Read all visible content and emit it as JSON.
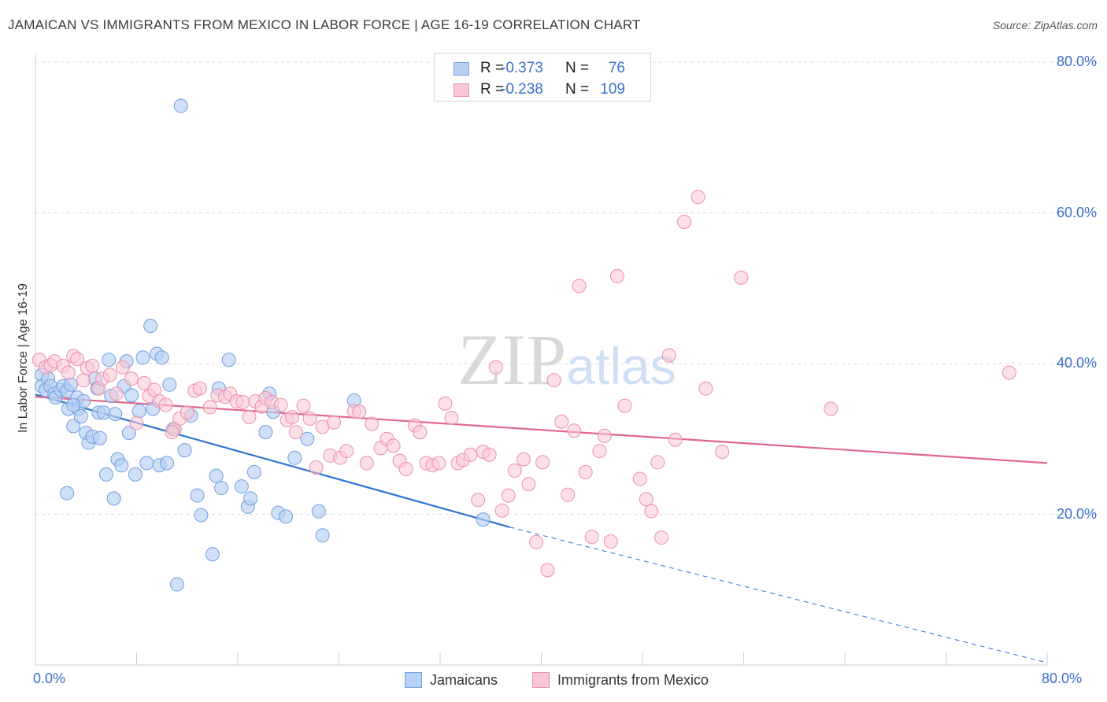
{
  "header": {
    "title": "JAMAICAN VS IMMIGRANTS FROM MEXICO IN LABOR FORCE | AGE 16-19 CORRELATION CHART",
    "source": "Source: ZipAtlas.com"
  },
  "watermark": "ZIPatlas",
  "colors": {
    "blue_fill": "#b7d0f3",
    "blue_stroke": "#6f9fe0",
    "blue_line": "#2f74d0",
    "pink_fill": "#f9c7d5",
    "pink_stroke": "#ec8fab",
    "pink_line": "#e06690",
    "axis_label": "#3a6fd0"
  },
  "legend_top": {
    "rows": [
      {
        "r_label": "R =",
        "r_value": "-0.373",
        "n_label": "N =",
        "n_value": "76"
      },
      {
        "r_label": "R =",
        "r_value": "-0.238",
        "n_label": "N =",
        "n_value": "109"
      }
    ]
  },
  "legend_bottom": {
    "items": [
      "Jamaicans",
      "Immigrants from Mexico"
    ]
  },
  "chart_data": {
    "type": "scatter",
    "title": "JAMAICAN VS IMMIGRANTS FROM MEXICO IN LABOR FORCE | AGE 16-19 CORRELATION CHART",
    "xlabel": "",
    "ylabel": "In Labor Force | Age 16-19",
    "xlim": [
      0,
      80
    ],
    "ylim": [
      0,
      80
    ],
    "x_tick_labels": [
      "0.0%",
      "80.0%"
    ],
    "y_tick_labels": [
      "80.0%",
      "60.0%",
      "40.0%",
      "20.0%"
    ],
    "y_ticks": [
      80,
      60,
      40,
      20
    ],
    "grid": true,
    "legend_position": "bottom",
    "series": [
      {
        "name": "Jamaicans",
        "stats": {
          "R": -0.373,
          "N": 76
        },
        "trend": {
          "x0": 0,
          "y0": 35.9,
          "x1": 37.5,
          "y1": 18.3,
          "dashed_to_x": 80,
          "dashed_to_y": 0.3
        },
        "points": [
          [
            0.5,
            38.5
          ],
          [
            0.5,
            37.0
          ],
          [
            0.8,
            36.5
          ],
          [
            1.0,
            38.0
          ],
          [
            1.2,
            37.0
          ],
          [
            1.5,
            36.0
          ],
          [
            1.6,
            35.5
          ],
          [
            2.0,
            36.5
          ],
          [
            2.2,
            37.0
          ],
          [
            2.5,
            36.4
          ],
          [
            2.6,
            34.0
          ],
          [
            2.8,
            37.2
          ],
          [
            3.0,
            31.7
          ],
          [
            3.3,
            35.5
          ],
          [
            3.4,
            34.0
          ],
          [
            3.6,
            33.0
          ],
          [
            3.8,
            35.0
          ],
          [
            4.0,
            30.8
          ],
          [
            4.2,
            29.5
          ],
          [
            4.5,
            30.3
          ],
          [
            4.7,
            38.0
          ],
          [
            4.9,
            36.7
          ],
          [
            5.0,
            33.5
          ],
          [
            5.1,
            30.1
          ],
          [
            5.4,
            33.5
          ],
          [
            5.6,
            25.3
          ],
          [
            5.8,
            40.5
          ],
          [
            6.0,
            35.7
          ],
          [
            6.3,
            33.3
          ],
          [
            6.5,
            27.3
          ],
          [
            6.8,
            26.5
          ],
          [
            7.0,
            37.0
          ],
          [
            7.2,
            40.3
          ],
          [
            7.4,
            30.8
          ],
          [
            7.6,
            35.8
          ],
          [
            7.9,
            25.3
          ],
          [
            8.2,
            33.7
          ],
          [
            8.5,
            40.8
          ],
          [
            8.8,
            26.8
          ],
          [
            9.1,
            45.0
          ],
          [
            9.3,
            34.0
          ],
          [
            9.6,
            41.3
          ],
          [
            9.8,
            26.5
          ],
          [
            10.0,
            40.8
          ],
          [
            10.4,
            26.8
          ],
          [
            10.6,
            37.2
          ],
          [
            10.9,
            31.3
          ],
          [
            11.2,
            10.7
          ],
          [
            11.5,
            74.2
          ],
          [
            11.8,
            28.5
          ],
          [
            12.3,
            33.1
          ],
          [
            12.8,
            22.5
          ],
          [
            13.1,
            19.9
          ],
          [
            14.0,
            14.7
          ],
          [
            14.3,
            25.1
          ],
          [
            14.5,
            36.7
          ],
          [
            14.7,
            23.5
          ],
          [
            15.3,
            40.5
          ],
          [
            16.3,
            23.7
          ],
          [
            16.8,
            21.0
          ],
          [
            17.0,
            22.1
          ],
          [
            17.3,
            25.6
          ],
          [
            18.2,
            30.9
          ],
          [
            18.5,
            36.0
          ],
          [
            18.8,
            33.6
          ],
          [
            19.2,
            20.2
          ],
          [
            19.8,
            19.7
          ],
          [
            20.5,
            27.5
          ],
          [
            21.5,
            30.0
          ],
          [
            22.4,
            20.4
          ],
          [
            22.7,
            17.2
          ],
          [
            25.2,
            35.1
          ],
          [
            2.5,
            22.8
          ],
          [
            6.2,
            22.1
          ],
          [
            35.4,
            19.3
          ],
          [
            3.0,
            34.5
          ]
        ]
      },
      {
        "name": "Immigrants from Mexico",
        "stats": {
          "R": -0.238,
          "N": 109
        },
        "trend": {
          "x0": 0,
          "y0": 35.6,
          "x1": 80,
          "y1": 26.8
        },
        "points": [
          [
            0.3,
            40.5
          ],
          [
            0.8,
            39.5
          ],
          [
            1.2,
            39.8
          ],
          [
            1.5,
            40.3
          ],
          [
            2.2,
            39.7
          ],
          [
            2.6,
            38.8
          ],
          [
            3.0,
            41.0
          ],
          [
            3.3,
            40.6
          ],
          [
            3.8,
            37.8
          ],
          [
            4.1,
            39.4
          ],
          [
            4.5,
            39.7
          ],
          [
            5.0,
            36.7
          ],
          [
            5.3,
            38.0
          ],
          [
            5.9,
            38.5
          ],
          [
            6.4,
            36.0
          ],
          [
            6.9,
            39.5
          ],
          [
            7.6,
            38.0
          ],
          [
            8.0,
            32.1
          ],
          [
            8.6,
            37.4
          ],
          [
            9.0,
            35.7
          ],
          [
            9.4,
            36.5
          ],
          [
            9.8,
            35.0
          ],
          [
            10.3,
            34.5
          ],
          [
            11.0,
            31.3
          ],
          [
            11.4,
            32.7
          ],
          [
            12.0,
            33.5
          ],
          [
            12.6,
            36.4
          ],
          [
            13.0,
            36.7
          ],
          [
            13.8,
            34.2
          ],
          [
            14.4,
            35.8
          ],
          [
            15.0,
            35.6
          ],
          [
            15.4,
            36.0
          ],
          [
            15.9,
            35.0
          ],
          [
            16.4,
            34.9
          ],
          [
            16.9,
            32.9
          ],
          [
            17.4,
            35.0
          ],
          [
            17.9,
            34.3
          ],
          [
            18.2,
            35.4
          ],
          [
            18.7,
            34.9
          ],
          [
            19.4,
            34.5
          ],
          [
            19.9,
            32.5
          ],
          [
            20.3,
            32.9
          ],
          [
            20.6,
            30.9
          ],
          [
            21.2,
            34.4
          ],
          [
            21.7,
            32.7
          ],
          [
            22.2,
            26.2
          ],
          [
            22.7,
            31.6
          ],
          [
            23.3,
            27.8
          ],
          [
            23.6,
            32.2
          ],
          [
            24.1,
            27.5
          ],
          [
            24.6,
            28.4
          ],
          [
            25.2,
            33.7
          ],
          [
            25.6,
            33.6
          ],
          [
            26.2,
            26.8
          ],
          [
            26.6,
            32.0
          ],
          [
            27.3,
            28.8
          ],
          [
            27.8,
            30.0
          ],
          [
            28.3,
            29.1
          ],
          [
            28.8,
            27.1
          ],
          [
            29.3,
            26.0
          ],
          [
            30.0,
            31.8
          ],
          [
            30.4,
            30.9
          ],
          [
            30.9,
            26.8
          ],
          [
            31.4,
            26.5
          ],
          [
            31.9,
            26.8
          ],
          [
            32.4,
            34.7
          ],
          [
            32.9,
            32.8
          ],
          [
            33.4,
            26.8
          ],
          [
            33.8,
            27.2
          ],
          [
            34.4,
            27.9
          ],
          [
            35.0,
            21.9
          ],
          [
            35.4,
            28.3
          ],
          [
            35.9,
            27.9
          ],
          [
            36.4,
            39.5
          ],
          [
            36.9,
            20.5
          ],
          [
            37.4,
            22.5
          ],
          [
            37.9,
            25.8
          ],
          [
            38.6,
            27.3
          ],
          [
            39.0,
            24.0
          ],
          [
            39.6,
            16.3
          ],
          [
            40.1,
            26.9
          ],
          [
            40.5,
            12.6
          ],
          [
            41.0,
            37.8
          ],
          [
            41.6,
            32.3
          ],
          [
            42.1,
            22.6
          ],
          [
            42.6,
            31.1
          ],
          [
            43.0,
            50.3
          ],
          [
            43.5,
            25.6
          ],
          [
            44.0,
            17.0
          ],
          [
            44.6,
            28.4
          ],
          [
            45.0,
            30.4
          ],
          [
            45.5,
            16.4
          ],
          [
            46.0,
            51.6
          ],
          [
            46.6,
            34.4
          ],
          [
            47.8,
            24.7
          ],
          [
            48.3,
            22.0
          ],
          [
            48.7,
            20.4
          ],
          [
            49.2,
            26.9
          ],
          [
            49.5,
            16.9
          ],
          [
            50.1,
            41.1
          ],
          [
            50.6,
            29.9
          ],
          [
            51.3,
            58.8
          ],
          [
            52.4,
            62.1
          ],
          [
            53.0,
            36.7
          ],
          [
            54.3,
            28.3
          ],
          [
            55.8,
            51.4
          ],
          [
            62.9,
            34.0
          ],
          [
            77.0,
            38.8
          ],
          [
            10.8,
            30.9
          ]
        ]
      }
    ]
  }
}
